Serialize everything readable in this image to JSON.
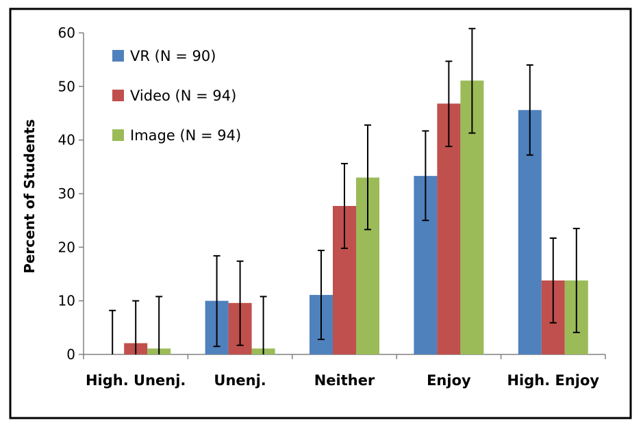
{
  "chart_data": {
    "type": "bar",
    "ylabel": "Percent of Students",
    "ylim": [
      0,
      60
    ],
    "yticks": [
      0,
      10,
      20,
      30,
      40,
      50,
      60
    ],
    "categories": [
      "High. Unenj.",
      "Unenj.",
      "Neither",
      "Enjoy",
      "High. Enjoy"
    ],
    "series": [
      {
        "name": "VR (N = 90)",
        "color": "#4f81bd",
        "values": [
          0,
          10,
          11.1,
          33.3,
          45.6
        ],
        "error": [
          [
            0,
            8.2
          ],
          [
            1.5,
            18.4
          ],
          [
            2.8,
            19.4
          ],
          [
            25,
            41.7
          ],
          [
            37.2,
            54
          ]
        ]
      },
      {
        "name": "Video (N = 94)",
        "color": "#c0504d",
        "values": [
          2.1,
          9.6,
          27.7,
          46.8,
          13.8
        ],
        "error": [
          [
            0,
            10
          ],
          [
            1.7,
            17.4
          ],
          [
            19.8,
            35.6
          ],
          [
            38.8,
            54.7
          ],
          [
            5.9,
            21.7
          ]
        ]
      },
      {
        "name": "Image (N = 94)",
        "color": "#9bbb59",
        "values": [
          1.1,
          1.1,
          33,
          51.1,
          13.8
        ],
        "error": [
          [
            0,
            10.8
          ],
          [
            0,
            10.8
          ],
          [
            23.3,
            42.8
          ],
          [
            41.3,
            60.8
          ],
          [
            4.1,
            23.5
          ]
        ]
      }
    ],
    "legend": "top-left inside plot",
    "grid": false
  }
}
